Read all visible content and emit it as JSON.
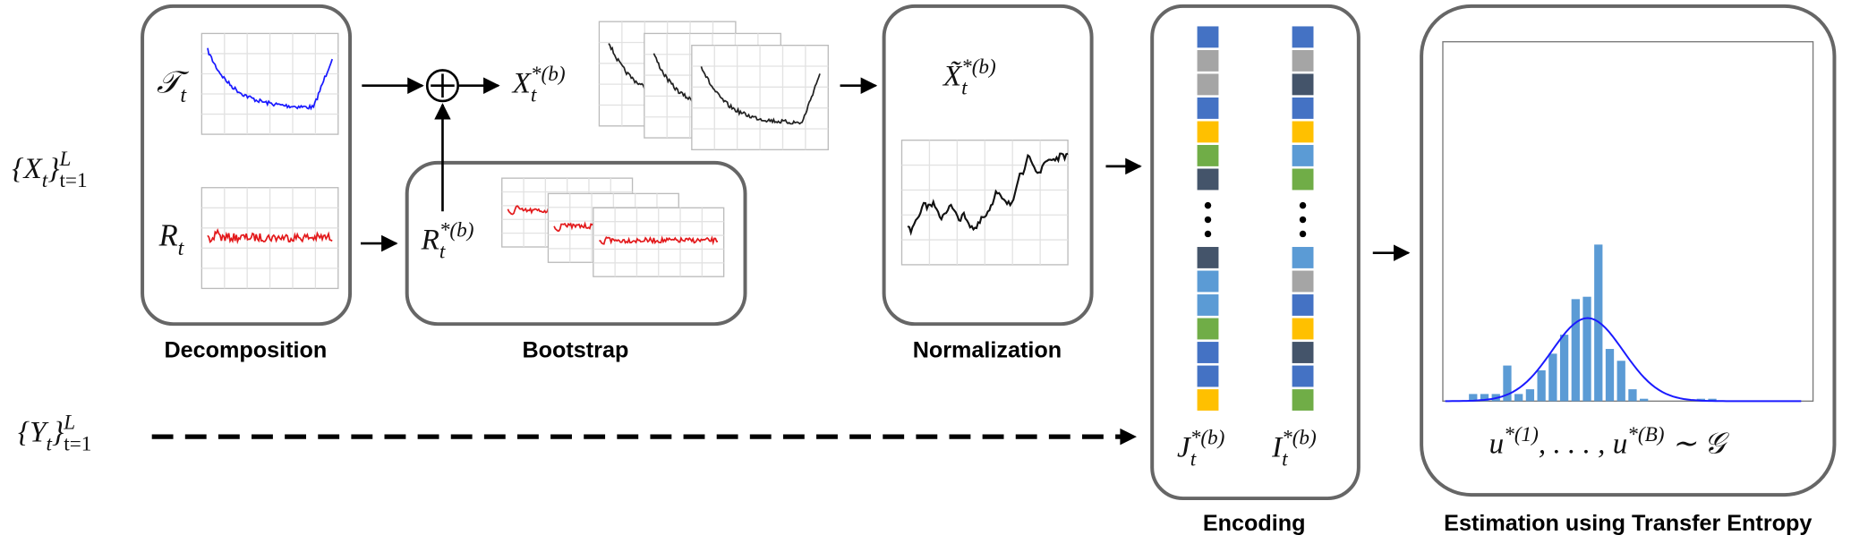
{
  "inputs": {
    "x": [
      {
        "text": "{X",
        "pos": "base"
      },
      {
        "text": "t",
        "pos": "sub"
      },
      {
        "text": "}",
        "pos": "base"
      },
      {
        "text": "L",
        "pos": "sup"
      },
      {
        "text": "t=1",
        "pos": "sub"
      }
    ],
    "y": [
      {
        "text": "{Y",
        "pos": "base"
      },
      {
        "text": "t",
        "pos": "sub"
      },
      {
        "text": "}",
        "pos": "base"
      },
      {
        "text": "L",
        "pos": "sup"
      },
      {
        "text": "t=1",
        "pos": "sub"
      }
    ]
  },
  "decomposition": {
    "label": "Decomposition",
    "trend": [
      {
        "text": "𝒯",
        "pos": "base"
      },
      {
        "text": "t",
        "pos": "sub"
      }
    ],
    "residual": [
      {
        "text": "R",
        "pos": "base"
      },
      {
        "text": "t",
        "pos": "sub"
      }
    ]
  },
  "bootstrap": {
    "label": "Bootstrap",
    "resampled": [
      {
        "text": "R",
        "pos": "base"
      },
      {
        "text": "*(b)",
        "pos": "sup"
      },
      {
        "text": "t",
        "pos": "sub"
      }
    ],
    "combined": [
      {
        "text": "X",
        "pos": "base"
      },
      {
        "text": "*(b)",
        "pos": "sup"
      },
      {
        "text": "t",
        "pos": "sub"
      }
    ]
  },
  "normalization": {
    "label": "Normalization",
    "normalized": [
      {
        "text": "X̃",
        "pos": "base"
      },
      {
        "text": "*(b)",
        "pos": "sup"
      },
      {
        "text": "t",
        "pos": "sub"
      }
    ]
  },
  "encoding": {
    "label": "Encoding",
    "j": [
      {
        "text": "J",
        "pos": "base"
      },
      {
        "text": "*(b)",
        "pos": "sup"
      },
      {
        "text": "t",
        "pos": "sub"
      }
    ],
    "i": [
      {
        "text": "I",
        "pos": "base"
      },
      {
        "text": "*(b)",
        "pos": "sup"
      },
      {
        "text": "t",
        "pos": "sub"
      }
    ]
  },
  "estimation": {
    "label": "Estimation using Transfer Entropy",
    "samples": [
      {
        "text": "u",
        "pos": "base"
      },
      {
        "text": "*(1)",
        "pos": "sup"
      },
      {
        "text": ", . . . , u",
        "pos": "base"
      },
      {
        "text": "*(B)",
        "pos": "sup"
      },
      {
        "text": " ∼ 𝒢",
        "pos": "base"
      }
    ]
  }
}
